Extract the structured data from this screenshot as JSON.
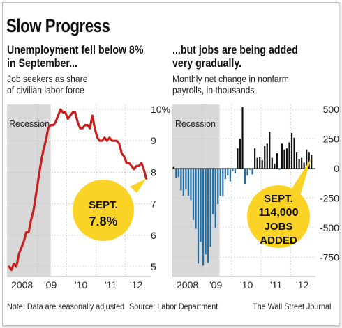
{
  "title": "Slow Progress",
  "left": {
    "headline": [
      "Unemployment fell below 8%",
      "in September..."
    ],
    "subtitle": [
      "Job seekers as share",
      "of civilian labor force"
    ],
    "recession_label": "Recession",
    "callout": [
      "SEPT.",
      "7.8%"
    ]
  },
  "right": {
    "headline": [
      "...but  jobs are being added",
      "very gradually."
    ],
    "subtitle": [
      "Monthly net change in nonfarm",
      "payrolls, in thousands"
    ],
    "recession_label": "Recession",
    "callout": [
      "SEPT.",
      "114,000",
      "JOBS",
      "ADDED"
    ]
  },
  "footer": {
    "note": "Note: Data are seasonally adjusted",
    "source": "Source: Labor Department",
    "credit": "The Wall Street Journal"
  },
  "colors": {
    "line": "#c8201f",
    "bars_loss": "#1f6fa6",
    "bars_gain": "#111111",
    "recession": "#d8d8d8",
    "callout": "#fbd327"
  },
  "chart_data": [
    {
      "type": "line",
      "title": "Unemployment fell below 8% in September...",
      "subtitle": "Job seekers as share of civilian labor force",
      "x_tick_labels": [
        "2008",
        "'09",
        "'10",
        "'11",
        "'12"
      ],
      "y_tick_labels": [
        "10%",
        "9",
        "8",
        "7",
        "6",
        "5"
      ],
      "ylim": [
        4.8,
        10
      ],
      "recession": [
        "2008-01",
        "2009-06"
      ],
      "grid": true,
      "x": [
        "2008-01",
        "2008-02",
        "2008-03",
        "2008-04",
        "2008-05",
        "2008-06",
        "2008-07",
        "2008-08",
        "2008-09",
        "2008-10",
        "2008-11",
        "2008-12",
        "2009-01",
        "2009-02",
        "2009-03",
        "2009-04",
        "2009-05",
        "2009-06",
        "2009-07",
        "2009-08",
        "2009-09",
        "2009-10",
        "2009-11",
        "2009-12",
        "2010-01",
        "2010-02",
        "2010-03",
        "2010-04",
        "2010-05",
        "2010-06",
        "2010-07",
        "2010-08",
        "2010-09",
        "2010-10",
        "2010-11",
        "2010-12",
        "2011-01",
        "2011-02",
        "2011-03",
        "2011-04",
        "2011-05",
        "2011-06",
        "2011-07",
        "2011-08",
        "2011-09",
        "2011-10",
        "2011-11",
        "2011-12",
        "2012-01",
        "2012-02",
        "2012-03",
        "2012-04",
        "2012-05",
        "2012-06",
        "2012-07",
        "2012-08",
        "2012-09"
      ],
      "values": [
        5.0,
        4.9,
        5.1,
        5.0,
        5.4,
        5.6,
        5.8,
        6.1,
        6.1,
        6.5,
        6.8,
        7.3,
        7.8,
        8.3,
        8.7,
        9.0,
        9.4,
        9.5,
        9.5,
        9.6,
        9.8,
        10.0,
        9.9,
        9.9,
        9.7,
        9.8,
        9.9,
        9.9,
        9.6,
        9.4,
        9.4,
        9.5,
        9.5,
        9.4,
        9.8,
        9.4,
        9.1,
        9.0,
        9.0,
        9.1,
        9.0,
        9.1,
        9.0,
        9.0,
        9.0,
        8.9,
        8.6,
        8.5,
        8.3,
        8.3,
        8.2,
        8.1,
        8.2,
        8.2,
        8.3,
        8.1,
        7.8
      ],
      "annotation": "SEPT. 7.8%"
    },
    {
      "type": "bar",
      "title": "...but jobs are being added very gradually.",
      "subtitle": "Monthly net change in nonfarm payrolls, in thousands",
      "x_tick_labels": [
        "2008",
        "'09",
        "'10",
        "'11",
        "'12"
      ],
      "y_tick_labels": [
        "500",
        "250",
        "0",
        "-250",
        "-500",
        "-750"
      ],
      "ylim": [
        -850,
        550
      ],
      "recession": [
        "2008-01",
        "2009-06"
      ],
      "grid": true,
      "x": [
        "2008-01",
        "2008-02",
        "2008-03",
        "2008-04",
        "2008-05",
        "2008-06",
        "2008-07",
        "2008-08",
        "2008-09",
        "2008-10",
        "2008-11",
        "2008-12",
        "2009-01",
        "2009-02",
        "2009-03",
        "2009-04",
        "2009-05",
        "2009-06",
        "2009-07",
        "2009-08",
        "2009-09",
        "2009-10",
        "2009-11",
        "2009-12",
        "2010-01",
        "2010-02",
        "2010-03",
        "2010-04",
        "2010-05",
        "2010-06",
        "2010-07",
        "2010-08",
        "2010-09",
        "2010-10",
        "2010-11",
        "2010-12",
        "2011-01",
        "2011-02",
        "2011-03",
        "2011-04",
        "2011-05",
        "2011-06",
        "2011-07",
        "2011-08",
        "2011-09",
        "2011-10",
        "2011-11",
        "2011-12",
        "2012-01",
        "2012-02",
        "2012-03",
        "2012-04",
        "2012-05",
        "2012-06",
        "2012-07",
        "2012-08",
        "2012-09"
      ],
      "values": [
        14,
        -83,
        -72,
        -185,
        -233,
        -178,
        -231,
        -267,
        -434,
        -509,
        -802,
        -619,
        -820,
        -726,
        -796,
        -660,
        -386,
        -502,
        -300,
        -231,
        -236,
        -89,
        -59,
        -109,
        -20,
        -40,
        170,
        250,
        520,
        -130,
        -60,
        -10,
        -50,
        170,
        90,
        100,
        70,
        190,
        210,
        310,
        90,
        40,
        130,
        -10,
        210,
        160,
        170,
        220,
        300,
        260,
        140,
        80,
        90,
        50,
        160,
        140,
        114
      ],
      "annotation": "SEPT. 114,000 JOBS ADDED"
    }
  ]
}
